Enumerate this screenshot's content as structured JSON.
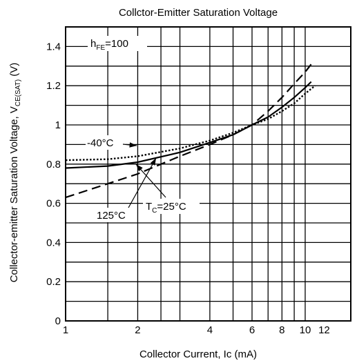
{
  "chart_data": {
    "type": "line",
    "title": "Collctor-Emitter Saturation Voltage",
    "xlabel": "Collector Current, Ic (mA)",
    "ylabel": {
      "prefix": "Collector-emitter Saturation Voltage, V",
      "sub": "CE(SAT)",
      "suffix": " (V)"
    },
    "x_scale": "log",
    "xlim": [
      1,
      15.5
    ],
    "ylim": [
      0,
      1.5
    ],
    "x_ticks": [
      1,
      2,
      4,
      6,
      8,
      10,
      12
    ],
    "x_tick_labels": [
      "1",
      "2",
      "4",
      "6",
      "8",
      "10",
      "12"
    ],
    "x_minor_grid": [
      1.5,
      2,
      2.5,
      3,
      4,
      5,
      6,
      7,
      8,
      9,
      10
    ],
    "y_ticks": [
      0,
      0.2,
      0.4,
      0.6,
      0.8,
      1.0,
      1.2,
      1.4
    ],
    "y_tick_labels": [
      "0",
      "0.2",
      "0.4",
      "0.6",
      "0.8",
      "1",
      "1.2",
      "1.4"
    ],
    "y_grid_step": 0.1,
    "grid": true,
    "annotations": {
      "hfe": {
        "main": "h",
        "sub": "FE",
        "rest": "=100"
      },
      "t_minus40": "-40°C",
      "t_125": "125°C",
      "tc25": {
        "main": "T",
        "sub": "C",
        "rest": "=25°C"
      }
    },
    "series": [
      {
        "key": "t25",
        "style": "solid",
        "points": [
          [
            1,
            0.78
          ],
          [
            1.5,
            0.79
          ],
          [
            2,
            0.81
          ],
          [
            3,
            0.86
          ],
          [
            4,
            0.91
          ],
          [
            5,
            0.95
          ],
          [
            6,
            1.0
          ],
          [
            7,
            1.04
          ],
          [
            8,
            1.09
          ],
          [
            9,
            1.14
          ],
          [
            10,
            1.19
          ],
          [
            10.6,
            1.22
          ]
        ]
      },
      {
        "key": "tm40",
        "style": "dotted",
        "points": [
          [
            1,
            0.82
          ],
          [
            1.5,
            0.825
          ],
          [
            2,
            0.84
          ],
          [
            3,
            0.88
          ],
          [
            4,
            0.92
          ],
          [
            5,
            0.96
          ],
          [
            6,
            1.0
          ],
          [
            7,
            1.03
          ],
          [
            8,
            1.07
          ],
          [
            9,
            1.11
          ],
          [
            10,
            1.16
          ],
          [
            11,
            1.2
          ]
        ]
      },
      {
        "key": "t125",
        "style": "dashed",
        "points": [
          [
            1,
            0.63
          ],
          [
            1.5,
            0.7
          ],
          [
            2,
            0.75
          ],
          [
            3,
            0.84
          ],
          [
            4,
            0.9
          ],
          [
            5,
            0.95
          ],
          [
            6,
            1.0
          ],
          [
            7,
            1.07
          ],
          [
            8,
            1.14
          ],
          [
            9,
            1.21
          ],
          [
            10,
            1.27
          ],
          [
            10.6,
            1.31
          ]
        ]
      }
    ]
  }
}
